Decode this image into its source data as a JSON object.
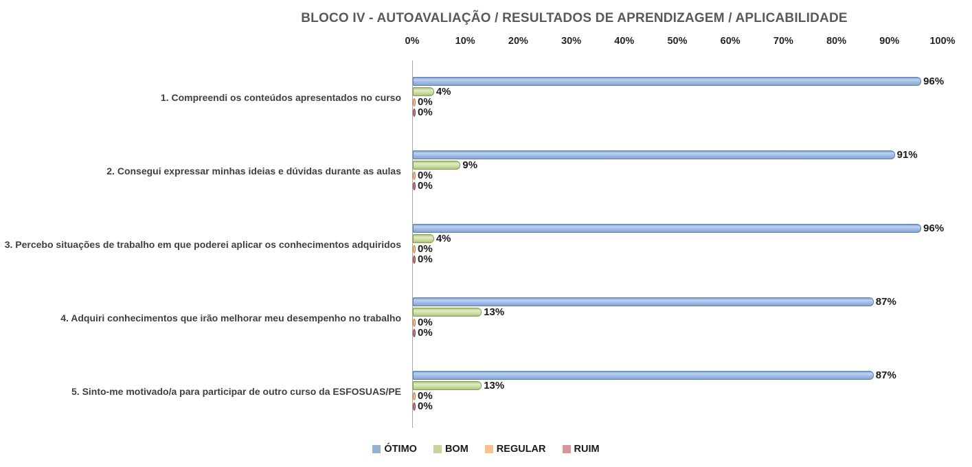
{
  "title": "BLOCO IV - AUTOAVALIAÇÃO / RESULTADOS DE APRENDIZAGEM / APLICABILIDADE",
  "chart_data": {
    "type": "bar",
    "orientation": "horizontal",
    "title": "BLOCO IV - AUTOAVALIAÇÃO / RESULTADOS DE APRENDIZAGEM / APLICABILIDADE",
    "categories": [
      "1. Compreendi os conteúdos apresentados no curso",
      "2. Consegui expressar minhas ideias e dúvidas durante as aulas",
      "3. Percebo situações de trabalho em que poderei aplicar os conhecimentos adquiridos",
      "4. Adquiri conhecimentos que irão melhorar meu desempenho no trabalho",
      "5. Sinto-me motivado/a para participar de outro curso da ESFOSUAS/PE"
    ],
    "series": [
      {
        "name": "ÓTIMO",
        "color": "#95B3D7",
        "values": [
          96,
          91,
          96,
          87,
          87
        ]
      },
      {
        "name": "BOM",
        "color": "#C3D69B",
        "values": [
          4,
          9,
          4,
          13,
          13
        ]
      },
      {
        "name": "REGULAR",
        "color": "#FAC090",
        "values": [
          0,
          0,
          0,
          0,
          0
        ]
      },
      {
        "name": "RUIM",
        "color": "#D99694",
        "values": [
          0,
          0,
          0,
          0,
          0
        ]
      }
    ],
    "value_labels": [
      [
        "96%",
        "4%",
        "0%",
        "0%"
      ],
      [
        "91%",
        "9%",
        "0%",
        "0%"
      ],
      [
        "96%",
        "4%",
        "0%",
        "0%"
      ],
      [
        "87%",
        "13%",
        "0%",
        "0%"
      ],
      [
        "87%",
        "13%",
        "0%",
        "0%"
      ]
    ],
    "xlim": [
      0,
      100
    ],
    "x_ticks": [
      "0%",
      "10%",
      "20%",
      "30%",
      "40%",
      "50%",
      "60%",
      "70%",
      "80%",
      "90%",
      "100%"
    ],
    "axis_position": "top",
    "legend_position": "bottom",
    "grid": false
  }
}
